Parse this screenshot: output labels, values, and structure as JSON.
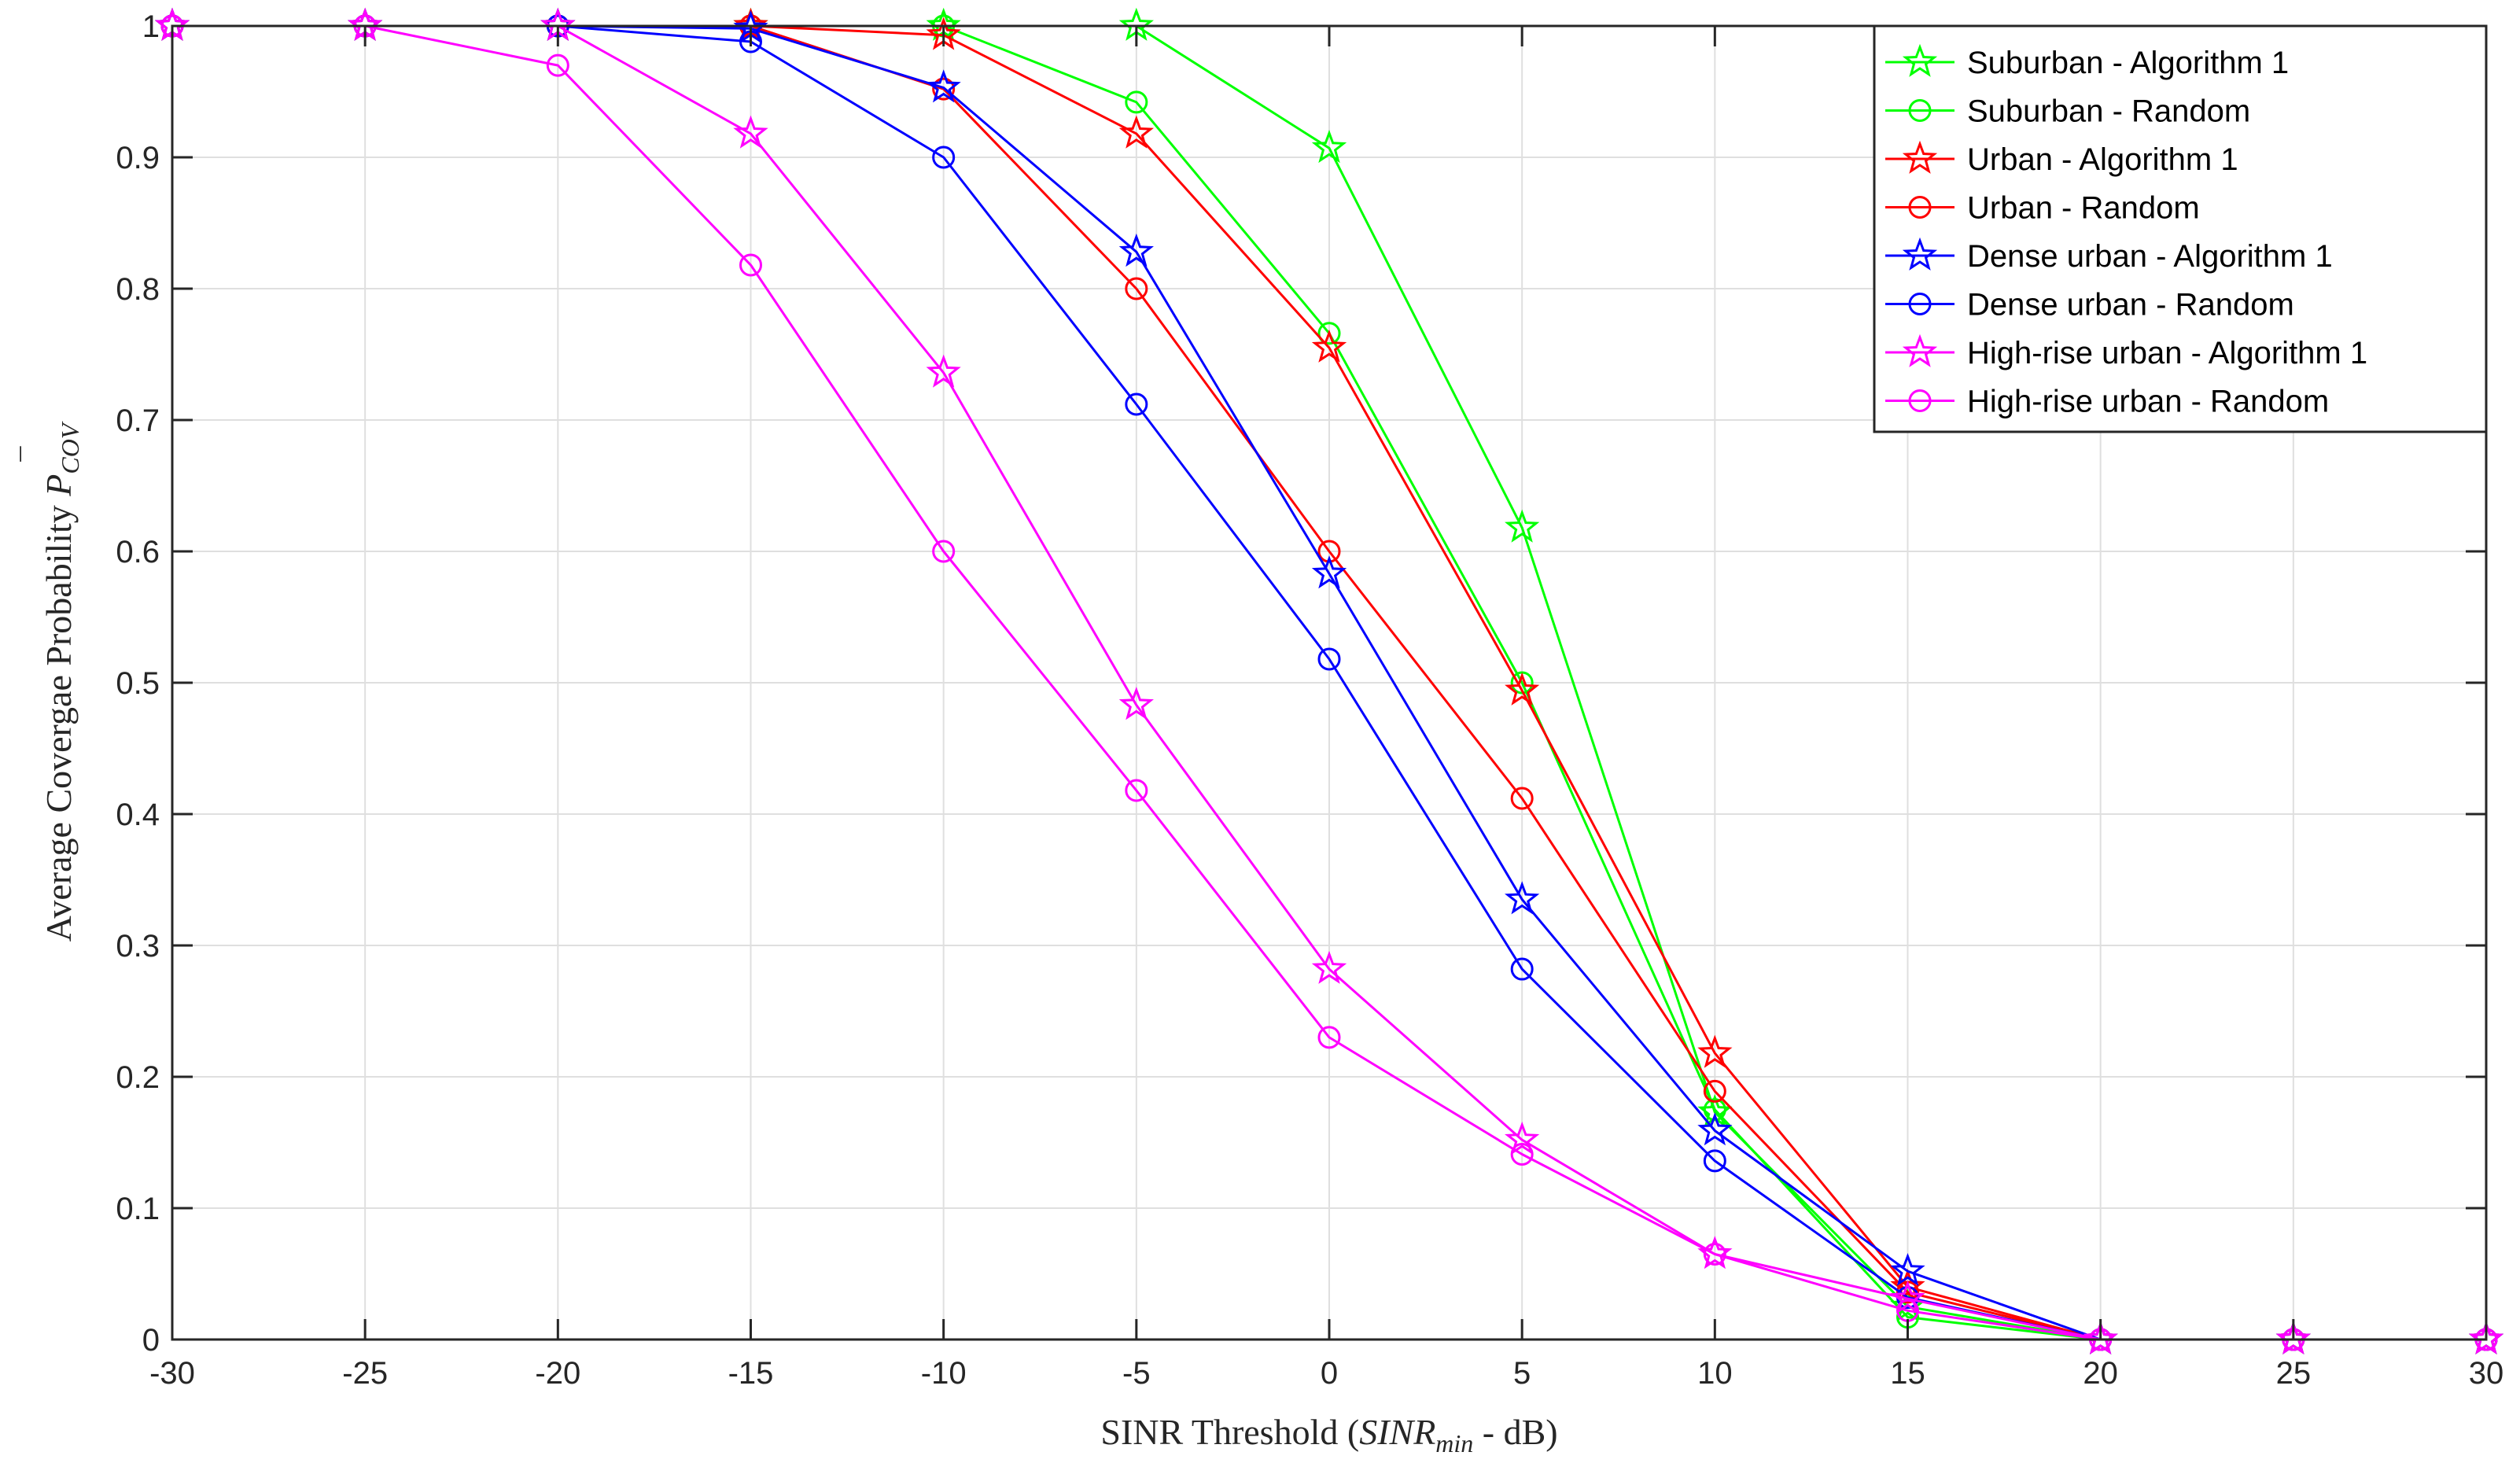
{
  "chart_data": {
    "type": "line",
    "x": [
      -30,
      -25,
      -20,
      -15,
      -10,
      -5,
      0,
      5,
      10,
      15,
      20,
      25,
      30
    ],
    "xlim": [
      -30,
      30
    ],
    "ylim": [
      0,
      1
    ],
    "xticks": [
      "-30",
      "-25",
      "-20",
      "-15",
      "-10",
      "-5",
      "0",
      "5",
      "10",
      "15",
      "20",
      "25",
      "30"
    ],
    "yticks": [
      "0",
      "0.1",
      "0.2",
      "0.3",
      "0.4",
      "0.5",
      "0.6",
      "0.7",
      "0.8",
      "0.9",
      "1"
    ],
    "grid": true,
    "legend_position": "top-right",
    "xlabel": {
      "prefix": "SINR Threshold (",
      "math_var": "SINR",
      "math_sub": "min",
      "suffix": " - dB)"
    },
    "ylabel": {
      "prefix": "Average Covergae Probability ",
      "math_var": "P",
      "math_sub": "COV",
      "bar": "¯"
    },
    "series": [
      {
        "name": "Suburban - Algorithm 1",
        "color": "#00FF00",
        "marker": "star",
        "values": [
          1,
          1,
          1,
          1,
          1,
          1,
          0.907,
          0.618,
          0.173,
          0.025,
          0,
          0,
          0
        ]
      },
      {
        "name": "Suburban - Random",
        "color": "#00FF00",
        "marker": "circle",
        "values": [
          1,
          1,
          1,
          1,
          1,
          0.942,
          0.766,
          0.5,
          0.175,
          0.017,
          0,
          0,
          0
        ]
      },
      {
        "name": "Urban - Algorithm 1",
        "color": "#FF0000",
        "marker": "star",
        "values": [
          1,
          1,
          1,
          1,
          0.993,
          0.918,
          0.755,
          0.494,
          0.218,
          0.04,
          0,
          0,
          0
        ]
      },
      {
        "name": "Urban -  Random",
        "color": "#FF0000",
        "marker": "circle",
        "values": [
          1,
          1,
          1,
          1,
          0.952,
          0.8,
          0.6,
          0.412,
          0.189,
          0.036,
          0,
          0,
          0
        ]
      },
      {
        "name": "Dense urban - Algorithm 1",
        "color": "#0000FF",
        "marker": "star",
        "values": [
          1,
          1,
          1,
          0.998,
          0.953,
          0.828,
          0.583,
          0.335,
          0.159,
          0.052,
          0,
          0,
          0
        ]
      },
      {
        "name": "Dense urban -  Random",
        "color": "#0000FF",
        "marker": "circle",
        "values": [
          1,
          1,
          1,
          0.988,
          0.9,
          0.712,
          0.518,
          0.282,
          0.136,
          0.032,
          0,
          0,
          0
        ]
      },
      {
        "name": "High-rise urban - Algorithm 1",
        "color": "#FF00FF",
        "marker": "star",
        "values": [
          1,
          1,
          1,
          0.918,
          0.736,
          0.483,
          0.282,
          0.152,
          0.065,
          0.031,
          0,
          0,
          0
        ]
      },
      {
        "name": "High-rise urban -  Random",
        "color": "#FF00FF",
        "marker": "circle",
        "values": [
          1,
          1,
          0.97,
          0.818,
          0.6,
          0.418,
          0.23,
          0.141,
          0.065,
          0.022,
          0,
          0,
          0
        ]
      }
    ]
  }
}
